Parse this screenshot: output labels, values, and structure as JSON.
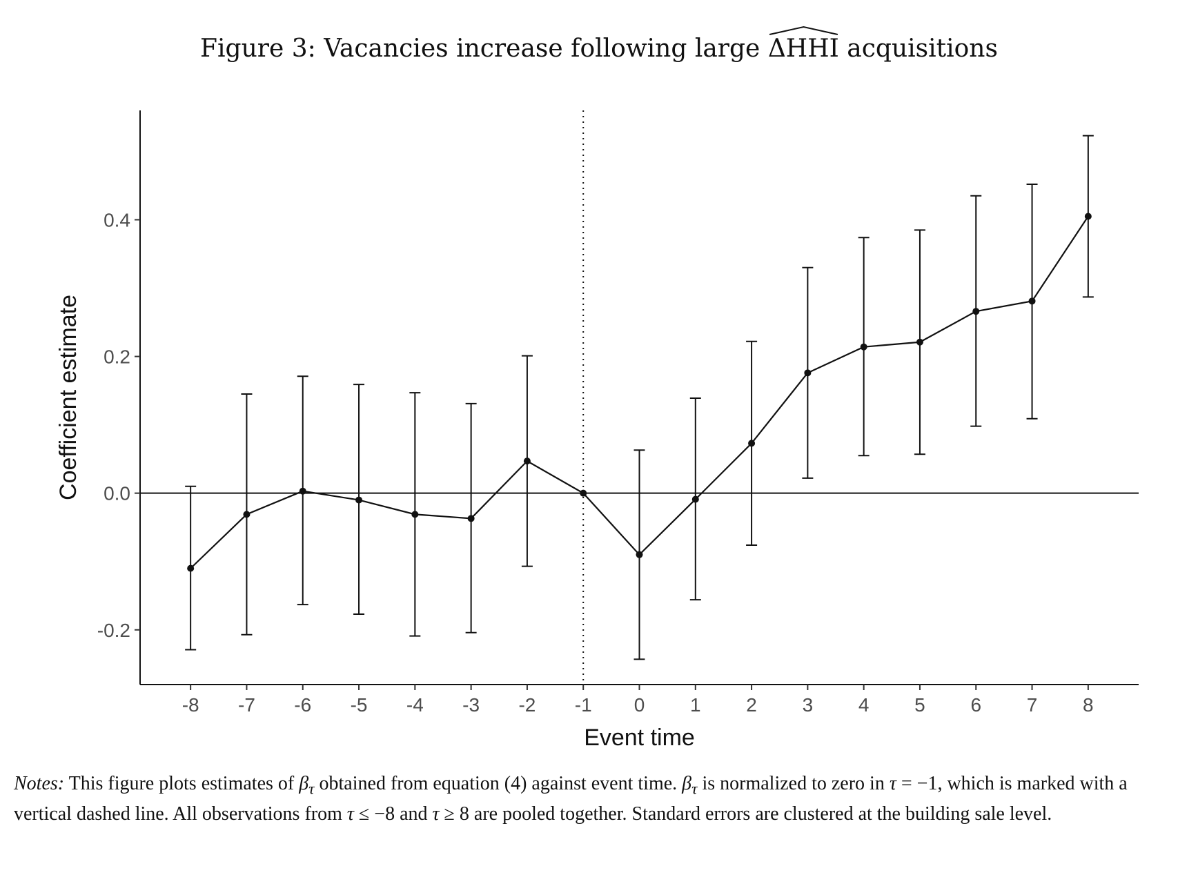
{
  "figure": {
    "title_before": "Figure 3: Vacancies increase following large ",
    "title_symbol": "ΔHHI",
    "title_after": " acquisitions"
  },
  "chart_data": {
    "type": "scatter",
    "title": "Figure 3: Vacancies increase following large ΔHHI acquisitions",
    "xlabel": "Event time",
    "ylabel": "Coefficient estimate",
    "x": [
      -8,
      -7,
      -6,
      -5,
      -4,
      -3,
      -2,
      -1,
      0,
      1,
      2,
      3,
      4,
      5,
      6,
      7,
      8
    ],
    "series": [
      {
        "values": [
          -0.11,
          -0.031,
          0.003,
          -0.01,
          -0.031,
          -0.037,
          0.047,
          0.0,
          -0.09,
          -0.009,
          0.073,
          0.176,
          0.214,
          0.221,
          0.266,
          0.281,
          0.405
        ],
        "lower": [
          -0.229,
          -0.207,
          -0.163,
          -0.177,
          -0.209,
          -0.204,
          -0.107,
          0.0,
          -0.243,
          -0.156,
          -0.076,
          0.022,
          0.055,
          0.057,
          0.098,
          0.109,
          0.287
        ],
        "upper": [
          0.01,
          0.145,
          0.171,
          0.159,
          0.147,
          0.131,
          0.201,
          0.0,
          0.063,
          0.139,
          0.222,
          0.33,
          0.374,
          0.385,
          0.435,
          0.452,
          0.523
        ]
      }
    ],
    "xticks": [
      "-8",
      "-7",
      "-6",
      "-5",
      "-4",
      "-3",
      "-2",
      "-1",
      "0",
      "1",
      "2",
      "3",
      "4",
      "5",
      "6",
      "7",
      "8"
    ],
    "yticks": [
      -0.2,
      0.0,
      0.2,
      0.4
    ],
    "ytick_labels": [
      "-0.2",
      "0.0",
      "0.2",
      "0.4"
    ],
    "xlim": [
      -8.9,
      8.9
    ],
    "ylim": [
      -0.28,
      0.56
    ],
    "reference_lines": {
      "horizontal_y": 0,
      "vertical_dotted_x": -1
    },
    "grid": false,
    "error_bars": true
  },
  "notes": {
    "label": "Notes:",
    "text_1": " This figure plots estimates of ",
    "beta": "β",
    "tau": "τ",
    "text_2": " obtained from equation (4) against event time. ",
    "text_3": " is normalized to zero in ",
    "eq_minus1": " = −1, which is marked with a vertical dashed line. All observations from ",
    "leq_minus8": " ≤ −8 and ",
    "geq_8": " ≥ 8 are pooled together. Standard errors are clustered at the building sale level."
  }
}
